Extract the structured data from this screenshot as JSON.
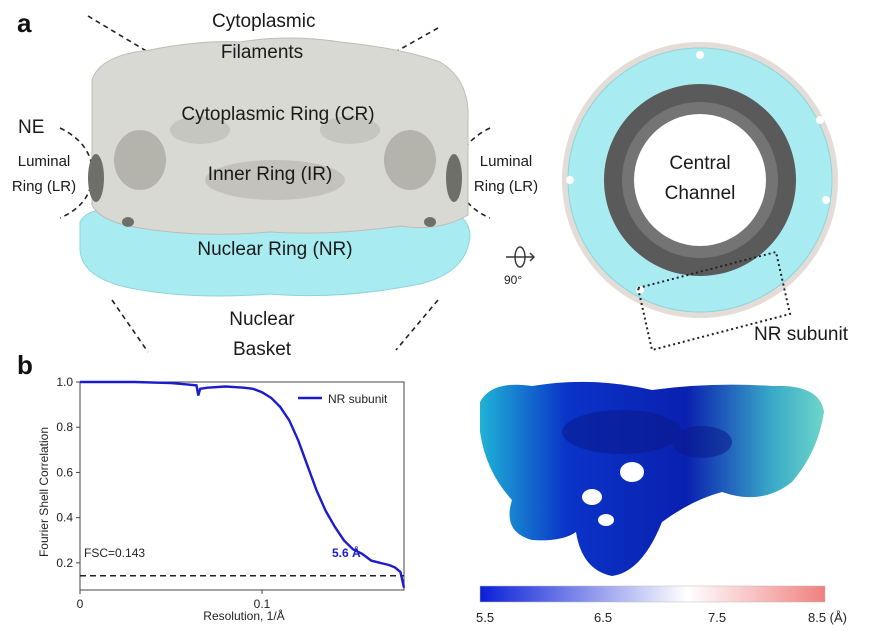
{
  "panel_a": {
    "letter": "a",
    "labels": {
      "cytoplasmic_filaments_1": "Cytoplasmic",
      "cytoplasmic_filaments_2": "Filaments",
      "cytoplasmic_ring": "Cytoplasmic Ring (CR)",
      "inner_ring": "Inner Ring (IR)",
      "nuclear_ring": "Nuclear Ring (NR)",
      "nuclear_basket_1": "Nuclear",
      "nuclear_basket_2": "Basket",
      "ne": "NE",
      "luminal_left_1": "Luminal",
      "luminal_left_2": "Ring (LR)",
      "luminal_right_1": "Luminal",
      "luminal_right_2": "Ring (LR)",
      "central_channel_1": "Central",
      "central_channel_2": "Channel",
      "rotation": "90°",
      "nr_subunit": "NR subunit"
    },
    "colors": {
      "gray_map": "#d9d9d3",
      "cyan_map": "#a8ecf2",
      "dark_ring": "#5a5a5a"
    }
  },
  "panel_b": {
    "letter": "b",
    "fsc_label": "FSC=0.143",
    "resolution_label": "5.6 Å",
    "colorbar": {
      "ticks": [
        "5.5",
        "6.5",
        "7.5",
        "8.5 (Å)"
      ],
      "colors": [
        "#0a1fd8",
        "#ffffff",
        "#f08080"
      ]
    }
  },
  "chart_data": {
    "type": "line",
    "xlabel": "Resolution, 1/Å",
    "ylabel": "Fourier Shell Correlation",
    "xlim": [
      0,
      0.178
    ],
    "ylim": [
      0.08,
      1.0
    ],
    "xticks": [
      "0",
      "0.1"
    ],
    "yticks": [
      "0.2",
      "0.4",
      "0.6",
      "0.8",
      "1.0"
    ],
    "threshold": 0.143,
    "legend_position": "top-right",
    "series": [
      {
        "name": "NR subunit",
        "color": "#1c1ccf",
        "x": [
          0,
          0.03,
          0.05,
          0.058,
          0.064,
          0.065,
          0.066,
          0.07,
          0.08,
          0.09,
          0.095,
          0.1,
          0.105,
          0.11,
          0.115,
          0.12,
          0.125,
          0.13,
          0.135,
          0.14,
          0.145,
          0.15,
          0.155,
          0.16,
          0.165,
          0.17,
          0.173,
          0.176,
          0.178
        ],
        "y": [
          1.0,
          1.0,
          0.995,
          0.99,
          0.985,
          0.94,
          0.97,
          0.975,
          0.98,
          0.975,
          0.97,
          0.955,
          0.93,
          0.89,
          0.83,
          0.74,
          0.63,
          0.52,
          0.43,
          0.36,
          0.3,
          0.26,
          0.24,
          0.21,
          0.2,
          0.19,
          0.18,
          0.16,
          0.09
        ]
      }
    ]
  }
}
